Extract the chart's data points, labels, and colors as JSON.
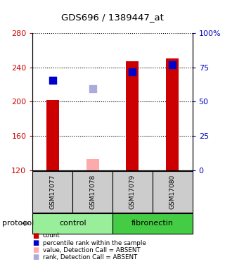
{
  "title": "GDS696 / 1389447_at",
  "samples": [
    "GSM17077",
    "GSM17078",
    "GSM17079",
    "GSM17080"
  ],
  "groups": [
    "control",
    "control",
    "fibronectin",
    "fibronectin"
  ],
  "bar_values": [
    202,
    133,
    247,
    250
  ],
  "bar_colors": [
    "#cc0000",
    "#ffaaaa",
    "#cc0000",
    "#cc0000"
  ],
  "bar_bottom": 120,
  "dot_values": [
    225,
    215,
    235,
    243
  ],
  "dot_colors": [
    "#0000cc",
    "#aaaadd",
    "#0000cc",
    "#0000cc"
  ],
  "ylim_left": [
    120,
    280
  ],
  "ylim_right": [
    0,
    100
  ],
  "yticks_left": [
    120,
    160,
    200,
    240,
    280
  ],
  "yticks_right": [
    0,
    25,
    50,
    75,
    100
  ],
  "ytick_labels_right": [
    "0",
    "25",
    "50",
    "75",
    "100%"
  ],
  "group_colors": {
    "control": "#99ee99",
    "fibronectin": "#44cc44"
  },
  "protocol_label": "protocol",
  "legend_items": [
    {
      "label": "count",
      "color": "#cc0000"
    },
    {
      "label": "percentile rank within the sample",
      "color": "#0000cc"
    },
    {
      "label": "value, Detection Call = ABSENT",
      "color": "#ffaaaa"
    },
    {
      "label": "rank, Detection Call = ABSENT",
      "color": "#aaaadd"
    }
  ],
  "ax_left_color": "#cc0000",
  "ax_right_color": "#0000bb",
  "background_color": "#ffffff",
  "bar_width": 0.32,
  "dot_size": 55
}
